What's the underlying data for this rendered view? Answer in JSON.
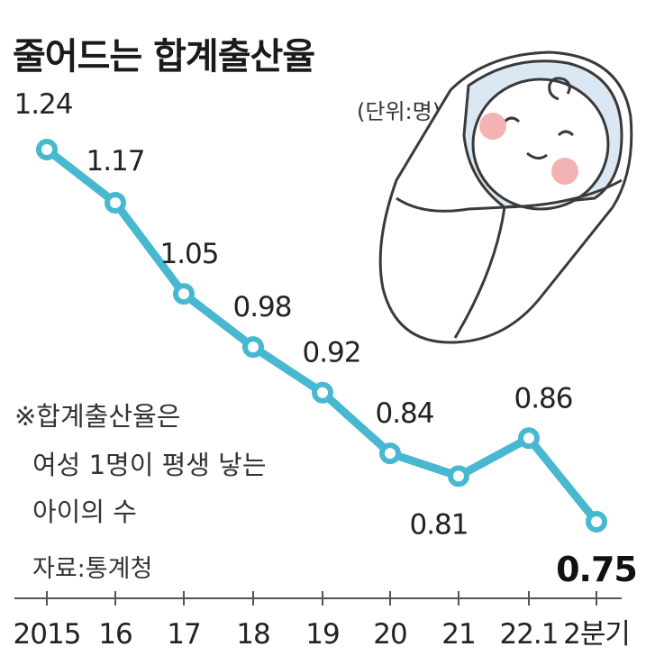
{
  "title": "줄어드는 합계출산율",
  "unit": "(단위:명)",
  "note": [
    "※합계출산율은",
    "여성 1명이 평생 낳는",
    "아이의 수"
  ],
  "source": "자료:통계청",
  "colors": {
    "line": "#48b8d0",
    "marker_fill": "#ffffff",
    "axis": "#555555"
  },
  "illustration": "swaddled-baby-icon",
  "chart_data": {
    "type": "line",
    "title": "줄어드는 합계출산율",
    "xlabel": "",
    "ylabel": "",
    "unit": "(단위:명)",
    "categories": [
      "2015",
      "16",
      "17",
      "18",
      "19",
      "20",
      "21",
      "22.1",
      "2분기"
    ],
    "values": [
      1.24,
      1.17,
      1.05,
      0.98,
      0.92,
      0.84,
      0.81,
      0.86,
      0.75
    ],
    "labels": [
      "1.24",
      "1.17",
      "1.05",
      "0.98",
      "0.92",
      "0.84",
      "0.81",
      "0.86",
      "0.75"
    ],
    "ylim": [
      0.6,
      1.3
    ],
    "grid": false,
    "legend": "none"
  }
}
